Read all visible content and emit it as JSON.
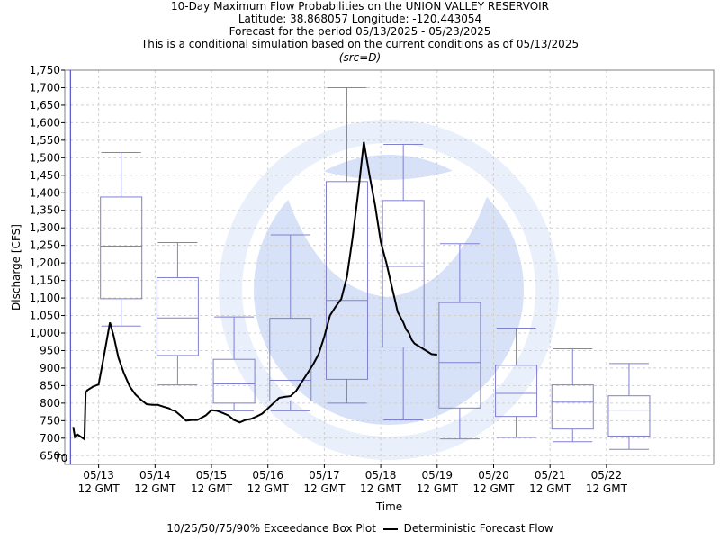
{
  "header": {
    "title": "10-Day Maximum Flow Probabilities on the UNION VALLEY RESERVOIR",
    "location": "Latitude: 38.868057 Longitude: -120.443054",
    "period": "Forecast for the period 05/13/2025 - 05/23/2025",
    "note": "This is a conditional simulation based on the current conditions as of 05/13/2025",
    "src": "(src=D)"
  },
  "legend": {
    "box_label": "10/25/50/75/90% Exceedance Box Plot",
    "line_label": "Deterministic Forecast Flow"
  },
  "colors": {
    "box": "#8080d0",
    "line": "#000000",
    "grid": "#d0d0d0",
    "t0": "#3030c0"
  },
  "watermark": {
    "name": "noaa-logo-icon"
  },
  "chart_data": {
    "type": "box",
    "xlabel": "Time",
    "ylabel": "Discharge [CFS]",
    "ylim": [
      625,
      1750
    ],
    "y_ticks": [
      650,
      700,
      750,
      800,
      850,
      900,
      950,
      1000,
      1050,
      1100,
      1150,
      1200,
      1250,
      1300,
      1350,
      1400,
      1450,
      1500,
      1550,
      1600,
      1650,
      1700,
      1750
    ],
    "y_tick_labels": [
      "650",
      "700",
      "750",
      "800",
      "850",
      "900",
      "950",
      "1,000",
      "1,050",
      "1,100",
      "1,150",
      "1,200",
      "1,250",
      "1,300",
      "1,350",
      "1,400",
      "1,450",
      "1,500",
      "1,550",
      "1,600",
      "1,650",
      "1,700",
      "1,750"
    ],
    "x_range_days": [
      -0.6,
      10.9
    ],
    "x_ticks": [
      {
        "day": 0,
        "date": "05/13",
        "time": "12 GMT"
      },
      {
        "day": 1,
        "date": "05/14",
        "time": "12 GMT"
      },
      {
        "day": 2,
        "date": "05/15",
        "time": "12 GMT"
      },
      {
        "day": 3,
        "date": "05/16",
        "time": "12 GMT"
      },
      {
        "day": 4,
        "date": "05/17",
        "time": "12 GMT"
      },
      {
        "day": 5,
        "date": "05/18",
        "time": "12 GMT"
      },
      {
        "day": 6,
        "date": "05/19",
        "time": "12 GMT"
      },
      {
        "day": 7,
        "date": "05/20",
        "time": "12 GMT"
      },
      {
        "day": 8,
        "date": "05/21",
        "time": "12 GMT"
      },
      {
        "day": 9,
        "date": "05/22",
        "time": "12 GMT"
      }
    ],
    "t0": {
      "day": -0.5,
      "label": "T0"
    },
    "boxes": [
      {
        "day": 0.4,
        "p10": 1020,
        "p25": 1098,
        "p50": 1248,
        "p75": 1388,
        "p90": 1515
      },
      {
        "day": 1.4,
        "p10": 852,
        "p25": 936,
        "p50": 1043,
        "p75": 1158,
        "p90": 1258
      },
      {
        "day": 2.4,
        "p10": 778,
        "p25": 800,
        "p50": 855,
        "p75": 925,
        "p90": 1046
      },
      {
        "day": 3.4,
        "p10": 778,
        "p25": 806,
        "p50": 865,
        "p75": 1042,
        "p90": 1280
      },
      {
        "day": 4.4,
        "p10": 800,
        "p25": 868,
        "p50": 1093,
        "p75": 1432,
        "p90": 1700
      },
      {
        "day": 5.4,
        "p10": 752,
        "p25": 960,
        "p50": 1190,
        "p75": 1378,
        "p90": 1538
      },
      {
        "day": 6.4,
        "p10": 698,
        "p25": 786,
        "p50": 916,
        "p75": 1087,
        "p90": 1255
      },
      {
        "day": 7.4,
        "p10": 702,
        "p25": 762,
        "p50": 828,
        "p75": 908,
        "p90": 1014
      },
      {
        "day": 8.4,
        "p10": 690,
        "p25": 726,
        "p50": 803,
        "p75": 852,
        "p90": 955
      },
      {
        "day": 9.4,
        "p10": 668,
        "p25": 706,
        "p50": 780,
        "p75": 821,
        "p90": 913
      }
    ],
    "series": [
      {
        "x": [
          -0.45,
          -0.42,
          -0.37,
          -0.25,
          -0.23,
          -0.2,
          -0.1,
          0.0,
          0.1,
          0.2,
          0.27,
          0.35,
          0.45,
          0.55,
          0.65,
          0.75,
          0.85,
          0.95,
          1.05,
          1.15,
          1.25,
          1.3,
          1.35,
          1.45,
          1.55,
          1.65,
          1.75,
          1.9,
          2.0,
          2.1,
          2.2,
          2.3,
          2.4,
          2.5,
          2.6,
          2.7,
          2.8,
          2.9,
          3.0,
          3.1,
          3.2,
          3.3,
          3.4,
          3.5,
          3.6,
          3.7,
          3.8,
          3.9,
          4.0,
          4.1,
          4.2,
          4.3,
          4.4,
          4.5,
          4.6,
          4.7,
          4.8,
          4.9,
          5.0,
          5.1,
          5.2,
          5.25,
          5.3,
          5.4,
          5.45,
          5.5,
          5.55,
          5.6,
          5.7,
          5.8,
          5.9,
          6.0
        ],
        "y": [
          732,
          703,
          710,
          697,
          830,
          837,
          847,
          853,
          940,
          1030,
          990,
          930,
          885,
          848,
          825,
          810,
          797,
          795,
          795,
          790,
          785,
          780,
          778,
          765,
          750,
          752,
          752,
          765,
          780,
          778,
          772,
          765,
          752,
          745,
          752,
          755,
          762,
          770,
          785,
          800,
          815,
          818,
          820,
          835,
          860,
          885,
          910,
          940,
          990,
          1050,
          1075,
          1097,
          1160,
          1270,
          1400,
          1545,
          1450,
          1365,
          1260,
          1200,
          1130,
          1095,
          1060,
          1030,
          1010,
          1000,
          980,
          970,
          960,
          950,
          940,
          938
        ]
      }
    ]
  }
}
